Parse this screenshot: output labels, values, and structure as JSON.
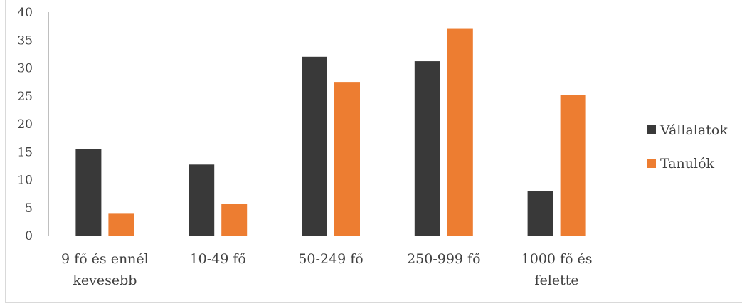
{
  "chart_data": {
    "type": "bar",
    "categories": [
      [
        "9 fő és ennél",
        "kevesebb"
      ],
      [
        "10-49 fő"
      ],
      [
        "50-249 fő"
      ],
      [
        "250-999 fő"
      ],
      [
        "1000 fő és",
        "felette"
      ]
    ],
    "series": [
      {
        "name": "Vállalatok",
        "color": "#393939",
        "values": [
          15.5,
          12.7,
          32.0,
          31.2,
          7.9
        ]
      },
      {
        "name": "Tanulók",
        "color": "#ED7D31",
        "values": [
          3.9,
          5.7,
          27.5,
          37.0,
          25.2
        ]
      }
    ],
    "ylim": [
      0,
      40
    ],
    "yticks": [
      "0",
      "5",
      "10",
      "15",
      "20",
      "25",
      "30",
      "35",
      "40"
    ],
    "ytick_values": [
      0,
      5,
      10,
      15,
      20,
      25,
      30,
      35,
      40
    ],
    "grid": false,
    "legend_position": "right",
    "axis_color": "#BFBFBF"
  }
}
